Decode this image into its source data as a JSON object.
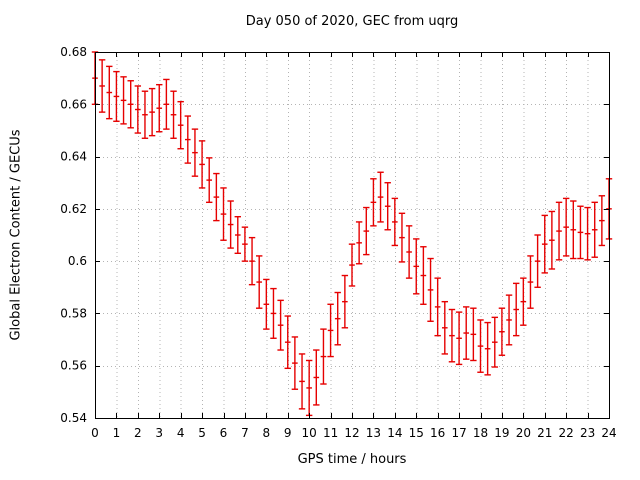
{
  "window": {
    "background": "#ffffff"
  },
  "chart_data": {
    "type": "scatter",
    "style": "yerrorbars",
    "title": "Day 050 of 2020, GEC from uqrg",
    "xlabel": "GPS time / hours",
    "ylabel": "Global Electron Content / GECUs",
    "xlim": [
      0,
      24
    ],
    "ylim": [
      0.54,
      0.68
    ],
    "grid": true,
    "legend": "none",
    "xticks": [
      0,
      1,
      2,
      3,
      4,
      5,
      6,
      7,
      8,
      9,
      10,
      11,
      12,
      13,
      14,
      15,
      16,
      17,
      18,
      19,
      20,
      21,
      22,
      23,
      24
    ],
    "xtick_labels": [
      "0",
      "1",
      "2",
      "3",
      "4",
      "5",
      "6",
      "7",
      "8",
      "9",
      "10",
      "11",
      "12",
      "13",
      "14",
      "15",
      "16",
      "17",
      "18",
      "19",
      "20",
      "21",
      "22",
      "23",
      "24"
    ],
    "yticks": [
      0.54,
      0.56,
      0.58,
      0.6,
      0.62,
      0.64,
      0.66,
      0.68
    ],
    "ytick_labels": [
      "0.54",
      "0.56",
      "0.58",
      "0.6",
      "0.62",
      "0.64",
      "0.66",
      "0.68"
    ],
    "colors": {
      "series": "#e60000",
      "grid": "#b4b4b4",
      "axis": "#000000",
      "text": "#000000",
      "background": "#ffffff"
    },
    "series": [
      {
        "name": "GEC",
        "x": [
          0,
          0.333,
          0.667,
          1,
          1.333,
          1.667,
          2,
          2.333,
          2.667,
          3,
          3.333,
          3.667,
          4,
          4.333,
          4.667,
          5,
          5.333,
          5.667,
          6,
          6.333,
          6.667,
          7,
          7.333,
          7.667,
          8,
          8.333,
          8.667,
          9,
          9.333,
          9.667,
          10,
          10.333,
          10.667,
          11,
          11.333,
          11.667,
          12,
          12.333,
          12.667,
          13,
          13.333,
          13.667,
          14,
          14.333,
          14.667,
          15,
          15.333,
          15.667,
          16,
          16.333,
          16.667,
          17,
          17.333,
          17.667,
          18,
          18.333,
          18.667,
          19,
          19.333,
          19.667,
          20,
          20.333,
          20.667,
          21,
          21.333,
          21.667,
          22,
          22.333,
          22.667,
          23,
          23.333,
          23.667,
          24
        ],
        "y": [
          0.67,
          0.667,
          0.6645,
          0.663,
          0.6615,
          0.66,
          0.658,
          0.656,
          0.657,
          0.6585,
          0.66,
          0.656,
          0.652,
          0.6465,
          0.6415,
          0.637,
          0.631,
          0.6245,
          0.618,
          0.614,
          0.61,
          0.6065,
          0.6,
          0.592,
          0.5835,
          0.58,
          0.5755,
          0.569,
          0.561,
          0.554,
          0.5515,
          0.5555,
          0.5635,
          0.5735,
          0.578,
          0.5845,
          0.5985,
          0.607,
          0.6115,
          0.6225,
          0.6245,
          0.621,
          0.615,
          0.609,
          0.6035,
          0.598,
          0.5945,
          0.589,
          0.5825,
          0.5745,
          0.5715,
          0.5705,
          0.5725,
          0.572,
          0.5675,
          0.5665,
          0.569,
          0.573,
          0.5775,
          0.5815,
          0.5845,
          0.592,
          0.6,
          0.6065,
          0.608,
          0.6115,
          0.613,
          0.612,
          0.611,
          0.6105,
          0.612,
          0.6155,
          0.62
        ],
        "yerr": [
          0.01,
          0.01,
          0.01,
          0.0095,
          0.009,
          0.009,
          0.009,
          0.009,
          0.009,
          0.009,
          0.0095,
          0.009,
          0.009,
          0.009,
          0.009,
          0.009,
          0.0085,
          0.009,
          0.01,
          0.009,
          0.007,
          0.0065,
          0.009,
          0.01,
          0.0095,
          0.0095,
          0.0095,
          0.01,
          0.01,
          0.0105,
          0.0105,
          0.0105,
          0.0105,
          0.01,
          0.01,
          0.01,
          0.008,
          0.008,
          0.009,
          0.009,
          0.0095,
          0.009,
          0.009,
          0.0093,
          0.01,
          0.0105,
          0.011,
          0.012,
          0.011,
          0.01,
          0.01,
          0.01,
          0.01,
          0.01,
          0.01,
          0.01,
          0.0095,
          0.009,
          0.0095,
          0.01,
          0.009,
          0.01,
          0.01,
          0.011,
          0.011,
          0.011,
          0.011,
          0.011,
          0.01,
          0.01,
          0.0105,
          0.0095,
          0.0115
        ]
      }
    ]
  }
}
